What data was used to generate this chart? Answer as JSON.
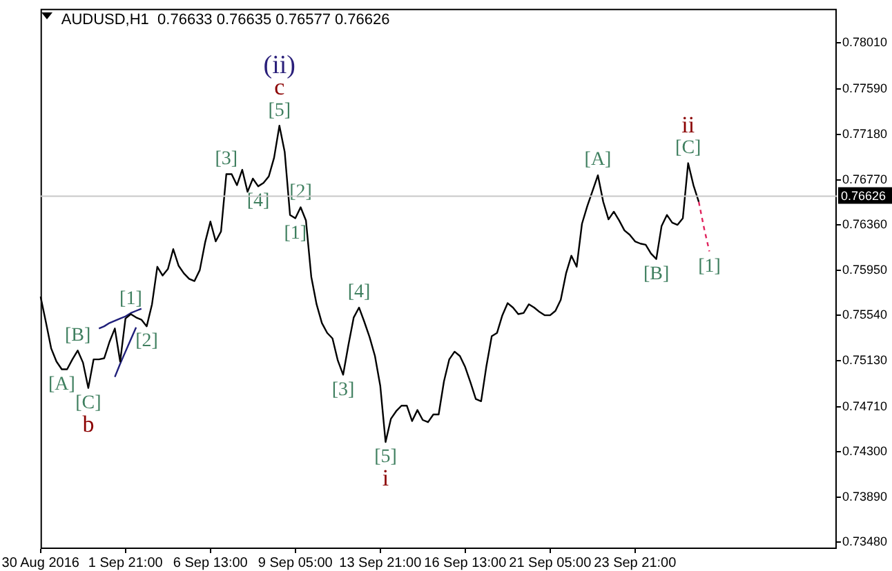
{
  "chart_data": {
    "type": "line",
    "title": "AUDUSD,H1  0.76633 0.76635 0.76577 0.76626",
    "legend": false,
    "grid": false,
    "marker": "none",
    "categories": [
      "30 Aug 2016",
      null,
      null,
      null,
      null,
      null,
      null,
      null,
      null,
      null,
      null,
      null,
      null,
      null,
      null,
      null,
      "1 Sep 21:00",
      null,
      null,
      null,
      null,
      null,
      null,
      null,
      null,
      null,
      null,
      null,
      null,
      null,
      null,
      null,
      "6 Sep 13:00",
      null,
      null,
      null,
      null,
      null,
      null,
      null,
      null,
      null,
      null,
      null,
      null,
      null,
      null,
      null,
      "9 Sep 05:00",
      null,
      null,
      null,
      null,
      null,
      null,
      null,
      null,
      null,
      null,
      null,
      null,
      null,
      null,
      null,
      "13 Sep 21:00",
      null,
      null,
      null,
      null,
      null,
      null,
      null,
      null,
      null,
      null,
      null,
      null,
      null,
      null,
      null,
      "16 Sep 13:00",
      null,
      null,
      null,
      null,
      null,
      null,
      null,
      null,
      null,
      null,
      null,
      null,
      null,
      null,
      null,
      "21 Sep 05:00",
      null,
      null,
      null,
      null,
      null,
      null,
      null,
      null,
      null,
      null,
      null,
      null,
      null,
      null,
      null,
      "23 Sep 21:00",
      null,
      null,
      null,
      null,
      null,
      null,
      null,
      null,
      null,
      null,
      null,
      null,
      null,
      null,
      null,
      null,
      null,
      null,
      null,
      null,
      null,
      null,
      null,
      null,
      null,
      null,
      null,
      null,
      null,
      null,
      null,
      null,
      null,
      null,
      null,
      null,
      null,
      null
    ],
    "series": [
      {
        "color": "#000000",
        "values": [
          0.7571,
          0.7548,
          0.7524,
          0.7512,
          0.7505,
          0.7505,
          0.7514,
          0.7522,
          0.7511,
          0.7488,
          0.7514,
          0.7514,
          0.7515,
          0.753,
          0.7542,
          0.7512,
          0.7551,
          0.7555,
          0.7552,
          0.755,
          0.7544,
          0.7564,
          0.7598,
          0.759,
          0.7596,
          0.7614,
          0.7599,
          0.7592,
          0.7587,
          0.7585,
          0.7595,
          0.762,
          0.7639,
          0.7621,
          0.763,
          0.7682,
          0.7682,
          0.7672,
          0.7686,
          0.7666,
          0.7678,
          0.7671,
          0.7674,
          0.768,
          0.7697,
          0.7726,
          0.7702,
          0.7645,
          0.7642,
          0.7652,
          0.764,
          0.7589,
          0.7564,
          0.7547,
          0.7538,
          0.7533,
          0.7513,
          0.75,
          0.7527,
          0.7552,
          0.7561,
          0.7548,
          0.7534,
          0.7517,
          0.749,
          0.7439,
          0.746,
          0.7467,
          0.7472,
          0.7472,
          0.7458,
          0.7468,
          0.7459,
          0.7457,
          0.7464,
          0.7464,
          0.7494,
          0.7514,
          0.7521,
          0.7517,
          0.7507,
          0.7493,
          0.7478,
          0.7476,
          0.7508,
          0.7535,
          0.7538,
          0.7554,
          0.7565,
          0.7561,
          0.7555,
          0.7556,
          0.7564,
          0.7561,
          0.7557,
          0.7554,
          0.7554,
          0.7558,
          0.7568,
          0.7592,
          0.7608,
          0.7598,
          0.7637,
          0.7653,
          0.7667,
          0.7681,
          0.7657,
          0.7641,
          0.7648,
          0.764,
          0.7631,
          0.7627,
          0.7621,
          0.7619,
          0.7618,
          0.761,
          0.7605,
          0.7635,
          0.7645,
          0.7638,
          0.7636,
          0.7642,
          0.7692,
          0.7672,
          0.7657,
          null,
          null,
          null,
          null,
          null,
          null,
          null,
          null,
          null,
          null,
          null,
          null,
          null,
          null,
          null,
          null,
          null,
          null,
          null,
          null,
          null,
          null,
          null,
          null,
          null,
          null
        ]
      },
      {
        "color": "#e0245e",
        "line_style": "dashed",
        "values": [
          null,
          null,
          null,
          null,
          null,
          null,
          null,
          null,
          null,
          null,
          null,
          null,
          null,
          null,
          null,
          null,
          null,
          null,
          null,
          null,
          null,
          null,
          null,
          null,
          null,
          null,
          null,
          null,
          null,
          null,
          null,
          null,
          null,
          null,
          null,
          null,
          null,
          null,
          null,
          null,
          null,
          null,
          null,
          null,
          null,
          null,
          null,
          null,
          null,
          null,
          null,
          null,
          null,
          null,
          null,
          null,
          null,
          null,
          null,
          null,
          null,
          null,
          null,
          null,
          null,
          null,
          null,
          null,
          null,
          null,
          null,
          null,
          null,
          null,
          null,
          null,
          null,
          null,
          null,
          null,
          null,
          null,
          null,
          null,
          null,
          null,
          null,
          null,
          null,
          null,
          null,
          null,
          null,
          null,
          null,
          null,
          null,
          null,
          null,
          null,
          null,
          null,
          null,
          null,
          null,
          null,
          null,
          null,
          null,
          null,
          null,
          null,
          null,
          null,
          null,
          null,
          null,
          null,
          null,
          null,
          null,
          null,
          null,
          null,
          0.7657,
          0.7633,
          0.7612,
          null,
          null,
          null,
          null,
          null,
          null,
          null,
          null,
          null,
          null,
          null,
          null,
          null,
          null,
          null,
          null,
          null,
          null,
          null,
          null,
          null,
          null,
          null,
          null
        ]
      },
      {
        "color": "#1f1f7a",
        "values": [
          null,
          null,
          null,
          null,
          null,
          null,
          null,
          null,
          null,
          null,
          null,
          0.7542,
          0.7544,
          0.7547,
          0.7549,
          0.7551,
          0.7553,
          0.7556,
          0.7558,
          0.756,
          null,
          null,
          null,
          null,
          null,
          null,
          null,
          null,
          null,
          null,
          null,
          null,
          null,
          null,
          null,
          null,
          null,
          null,
          null,
          null,
          null,
          null,
          null,
          null,
          null,
          null,
          null,
          null,
          null,
          null,
          null,
          null,
          null,
          null,
          null,
          null,
          null,
          null,
          null,
          null,
          null,
          null,
          null,
          null,
          null,
          null,
          null,
          null,
          null,
          null,
          null,
          null,
          null,
          null,
          null,
          null,
          null,
          null,
          null,
          null,
          null,
          null,
          null,
          null,
          null,
          null,
          null,
          null,
          null,
          null,
          null,
          null,
          null,
          null,
          null,
          null,
          null,
          null,
          null,
          null,
          null,
          null,
          null,
          null,
          null,
          null,
          null,
          null,
          null,
          null,
          null,
          null,
          null,
          null,
          null,
          null,
          null,
          null,
          null,
          null,
          null,
          null,
          null,
          null,
          null,
          null,
          null,
          null,
          null,
          null,
          null,
          null,
          null,
          null,
          null,
          null,
          null,
          null,
          null,
          null,
          null,
          null,
          null,
          null,
          null,
          null,
          null,
          null,
          null,
          null,
          null
        ]
      },
      {
        "color": "#1f1f7a",
        "values": [
          null,
          null,
          null,
          null,
          null,
          null,
          null,
          null,
          null,
          null,
          null,
          null,
          null,
          null,
          0.7498,
          0.751,
          0.7521,
          0.7532,
          0.7543,
          null,
          null,
          null,
          null,
          null,
          null,
          null,
          null,
          null,
          null,
          null,
          null,
          null,
          null,
          null,
          null,
          null,
          null,
          null,
          null,
          null,
          null,
          null,
          null,
          null,
          null,
          null,
          null,
          null,
          null,
          null,
          null,
          null,
          null,
          null,
          null,
          null,
          null,
          null,
          null,
          null,
          null,
          null,
          null,
          null,
          null,
          null,
          null,
          null,
          null,
          null,
          null,
          null,
          null,
          null,
          null,
          null,
          null,
          null,
          null,
          null,
          null,
          null,
          null,
          null,
          null,
          null,
          null,
          null,
          null,
          null,
          null,
          null,
          null,
          null,
          null,
          null,
          null,
          null,
          null,
          null,
          null,
          null,
          null,
          null,
          null,
          null,
          null,
          null,
          null,
          null,
          null,
          null,
          null,
          null,
          null,
          null,
          null,
          null,
          null,
          null,
          null,
          null,
          null,
          null,
          null,
          null,
          null,
          null,
          null,
          null,
          null,
          null,
          null,
          null,
          null,
          null,
          null,
          null,
          null,
          null,
          null,
          null,
          null,
          null,
          null,
          null,
          null,
          null,
          null,
          null,
          null
        ]
      }
    ],
    "ylim": [
      0.7342,
      0.7832
    ],
    "yticks": [
      {
        "value": 0.7348,
        "label": "0.73480"
      },
      {
        "value": 0.7389,
        "label": "0.73890"
      },
      {
        "value": 0.743,
        "label": "0.74300"
      },
      {
        "value": 0.7471,
        "label": "0.74710"
      },
      {
        "value": 0.7513,
        "label": "0.75130"
      },
      {
        "value": 0.7554,
        "label": "0.75540"
      },
      {
        "value": 0.7595,
        "label": "0.75950"
      },
      {
        "value": 0.7636,
        "label": "0.76360"
      },
      {
        "value": 0.7677,
        "label": "0.76770"
      },
      {
        "value": 0.7718,
        "label": "0.77180"
      },
      {
        "value": 0.7759,
        "label": "0.77590"
      },
      {
        "value": 0.7801,
        "label": "0.78010"
      }
    ],
    "ref_lines": [
      {
        "axis": "y",
        "value": 0.76626,
        "label": "0.76626"
      }
    ],
    "annotations": [
      {
        "text": "(ii)",
        "y": 0.7726
      },
      {
        "text": "c",
        "y": 0.7726
      },
      {
        "text": "[5]",
        "y": 0.7726
      },
      {
        "text": "[3]",
        "y": 0.7682
      },
      {
        "text": "[4]",
        "y": 0.7671
      },
      {
        "text": "[2]",
        "y": 0.7652
      },
      {
        "text": "[1]",
        "y": 0.7642
      },
      {
        "text": "[1]",
        "y": 0.7555
      },
      {
        "text": "[B]",
        "y": 0.7522
      },
      {
        "text": "[2]",
        "y": 0.7544
      },
      {
        "text": "[A]",
        "y": 0.7505
      },
      {
        "text": "[C]",
        "y": 0.7488
      },
      {
        "text": "b",
        "y": 0.7488
      },
      {
        "text": "[4]",
        "y": 0.7561
      },
      {
        "text": "[3]",
        "y": 0.75
      },
      {
        "text": "[5]",
        "y": 0.7439
      },
      {
        "text": "i",
        "y": 0.7439
      },
      {
        "text": "[A]",
        "y": 0.7681
      },
      {
        "text": "[B]",
        "y": 0.7605
      },
      {
        "text": "ii",
        "y": 0.7692
      },
      {
        "text": "[C]",
        "y": 0.7692
      },
      {
        "text": "[1]",
        "y": 0.7612
      }
    ]
  }
}
